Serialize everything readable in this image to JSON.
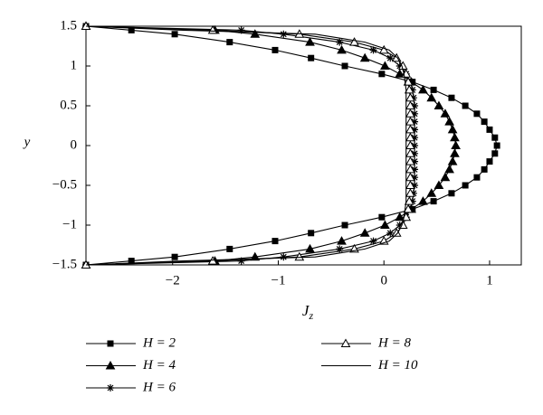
{
  "chart_data": {
    "type": "line",
    "x_label": {
      "main": "J",
      "sub": "z"
    },
    "y_label": "y",
    "xlim": [
      -2.82,
      1.3
    ],
    "ylim": [
      -1.5,
      1.5
    ],
    "xticks": [
      {
        "value": -2,
        "label": "−2"
      },
      {
        "value": -1,
        "label": "−1"
      },
      0,
      1
    ],
    "yticks": [
      {
        "value": -1.5,
        "label": "−1.5"
      },
      {
        "value": -1,
        "label": "−1"
      },
      {
        "value": -0.5,
        "label": "−0.5"
      },
      0,
      0.5,
      1,
      1.5
    ],
    "y": [
      1.5,
      1.45,
      1.4,
      1.3,
      1.2,
      1.1,
      1.0,
      0.9,
      0.8,
      0.7,
      0.6,
      0.5,
      0.4,
      0.3,
      0.2,
      0.1,
      0,
      -0.1,
      -0.2,
      -0.3,
      -0.4,
      -0.5,
      -0.6,
      -0.7,
      -0.8,
      -0.9,
      -1.0,
      -1.1,
      -1.2,
      -1.3,
      -1.4,
      -1.45,
      -1.5
    ],
    "series": [
      {
        "name": "H = 2",
        "marker": "square",
        "color": "#000000",
        "x": [
          -2.82,
          -2.39,
          -1.98,
          -1.46,
          -1.03,
          -0.69,
          -0.37,
          -0.02,
          0.27,
          0.47,
          0.64,
          0.77,
          0.88,
          0.95,
          1.0,
          1.05,
          1.07,
          1.05,
          1.0,
          0.95,
          0.88,
          0.77,
          0.64,
          0.47,
          0.27,
          -0.02,
          -0.37,
          -0.69,
          -1.03,
          -1.46,
          -1.98,
          -2.39,
          -2.82
        ]
      },
      {
        "name": "H = 4",
        "marker": "triangle",
        "color": "#000000",
        "x": [
          -2.82,
          -1.6,
          -1.22,
          -0.7,
          -0.4,
          -0.18,
          0.01,
          0.15,
          0.26,
          0.37,
          0.45,
          0.52,
          0.58,
          0.62,
          0.65,
          0.67,
          0.68,
          0.67,
          0.65,
          0.62,
          0.58,
          0.52,
          0.45,
          0.37,
          0.26,
          0.15,
          0.01,
          -0.18,
          -0.4,
          -0.7,
          -1.22,
          -1.6,
          -2.82
        ]
      },
      {
        "name": "H = 6",
        "marker": "star",
        "color": "#000000",
        "x": [
          -2.82,
          -1.35,
          -0.95,
          -0.42,
          -0.1,
          0.06,
          0.15,
          0.21,
          0.25,
          0.27,
          0.28,
          0.29,
          0.29,
          0.29,
          0.29,
          0.29,
          0.29,
          0.29,
          0.29,
          0.29,
          0.29,
          0.29,
          0.28,
          0.27,
          0.25,
          0.21,
          0.15,
          0.06,
          -0.1,
          -0.42,
          -0.95,
          -1.35,
          -2.82
        ]
      },
      {
        "name": "H = 8",
        "marker": "open-triangle",
        "color": "#000000",
        "x": [
          -2.82,
          -1.62,
          -0.8,
          -0.28,
          0.0,
          0.12,
          0.18,
          0.21,
          0.23,
          0.24,
          0.25,
          0.25,
          0.25,
          0.25,
          0.25,
          0.25,
          0.25,
          0.25,
          0.25,
          0.25,
          0.25,
          0.25,
          0.25,
          0.24,
          0.23,
          0.21,
          0.18,
          0.12,
          0.0,
          -0.28,
          -0.8,
          -1.62,
          -2.82
        ]
      },
      {
        "name": "H = 10",
        "marker": "none",
        "color": "#000000",
        "x": [
          -2.82,
          -1.9,
          -0.65,
          -0.18,
          0.05,
          0.13,
          0.17,
          0.19,
          0.2,
          0.21,
          0.21,
          0.21,
          0.21,
          0.21,
          0.21,
          0.21,
          0.21,
          0.21,
          0.21,
          0.21,
          0.21,
          0.21,
          0.21,
          0.21,
          0.2,
          0.19,
          0.17,
          0.13,
          0.05,
          -0.18,
          -0.65,
          -1.9,
          -2.82
        ]
      }
    ]
  }
}
